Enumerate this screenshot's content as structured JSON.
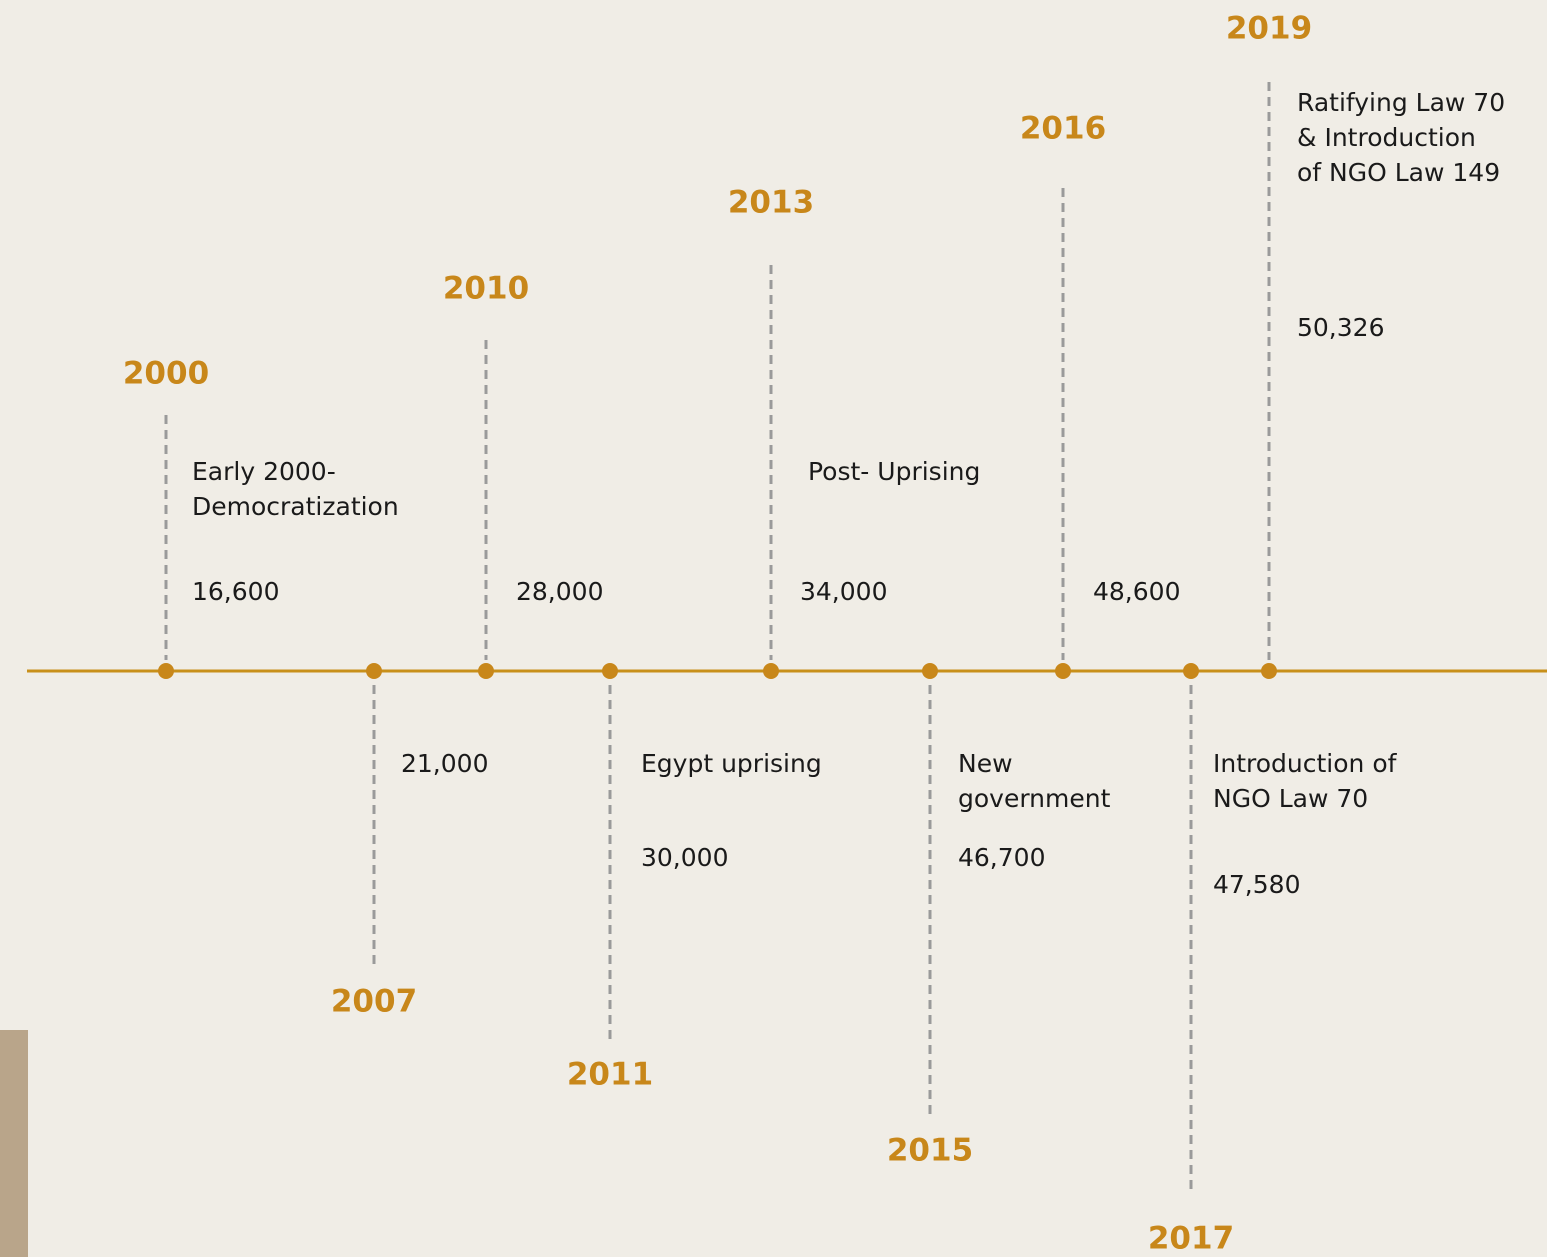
{
  "events": [
    {
      "year": "2000",
      "description": [
        "Early 2000-",
        "Democratization"
      ],
      "count": "16,600"
    },
    {
      "year": "2007",
      "description": [],
      "count": "21,000"
    },
    {
      "year": "2010",
      "description": [],
      "count": "28,000"
    },
    {
      "year": "2011",
      "description": [
        "Egypt uprising"
      ],
      "count": "30,000"
    },
    {
      "year": "2013",
      "description": [
        "Post- Uprising"
      ],
      "count": "34,000"
    },
    {
      "year": "2015",
      "description": [
        "New",
        "government"
      ],
      "count": "46,700"
    },
    {
      "year": "2016",
      "description": [],
      "count": "48,600"
    },
    {
      "year": "2017",
      "description": [
        "Introduction of",
        "NGO Law 70"
      ],
      "count": "47,580"
    },
    {
      "year": "2019",
      "description": [
        "Ratifying Law 70",
        "& Introduction",
        "of NGO Law 149"
      ],
      "count": "50,326"
    }
  ]
}
